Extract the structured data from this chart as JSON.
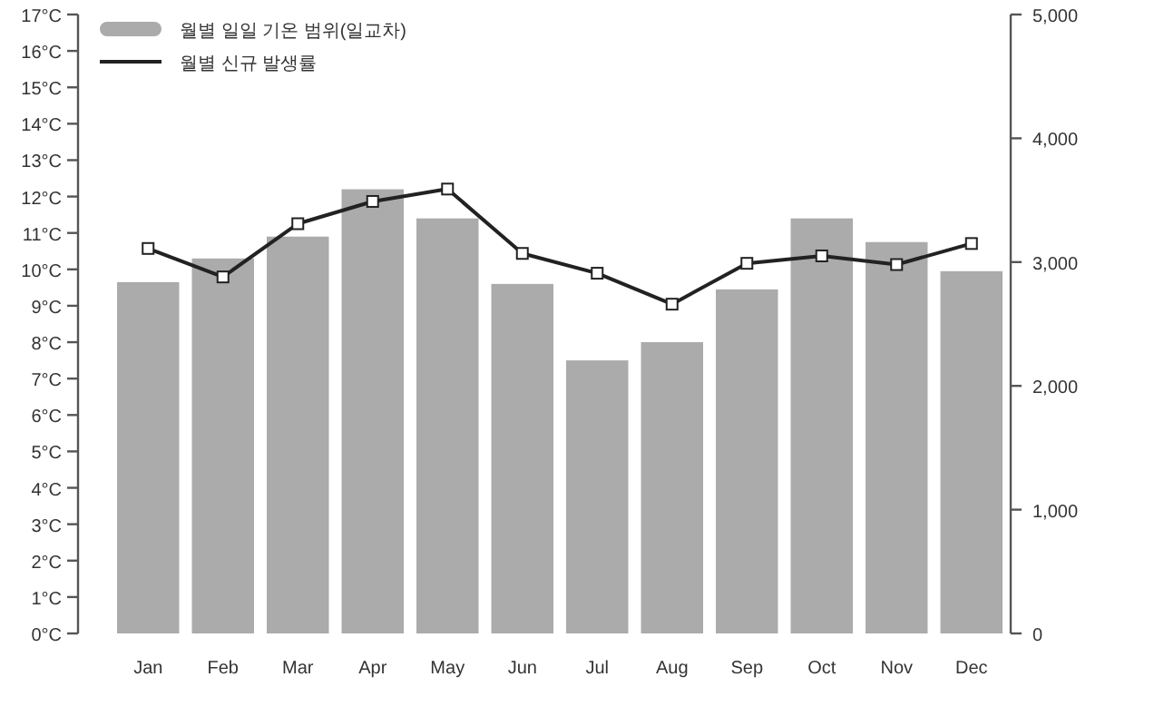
{
  "chart_data": {
    "type": "bar",
    "categories": [
      "Jan",
      "Feb",
      "Mar",
      "Apr",
      "May",
      "Jun",
      "Jul",
      "Aug",
      "Sep",
      "Oct",
      "Nov",
      "Dec"
    ],
    "series": [
      {
        "name": "월별 일일 기온 범위(일교차)",
        "color": "#ababab",
        "values": [
          9.65,
          10.3,
          10.9,
          12.2,
          11.4,
          9.6,
          7.5,
          8.0,
          9.45,
          11.4,
          10.75,
          9.95
        ]
      },
      {
        "name": "월별 신규 발생률",
        "type": "line",
        "axis": "y2",
        "color": "#222222",
        "marker": "square",
        "values": [
          3110,
          2880,
          3310,
          3490,
          3590,
          3070,
          2910,
          2660,
          2990,
          3050,
          2980,
          3150
        ]
      }
    ],
    "ylim": [
      0,
      17
    ],
    "yticks": [
      {
        "value": 0,
        "label": "0°C"
      },
      {
        "value": 1,
        "label": "1°C"
      },
      {
        "value": 2,
        "label": "2°C"
      },
      {
        "value": 3,
        "label": "3°C"
      },
      {
        "value": 4,
        "label": "4°C"
      },
      {
        "value": 5,
        "label": "5°C"
      },
      {
        "value": 6,
        "label": "6°C"
      },
      {
        "value": 7,
        "label": "7°C"
      },
      {
        "value": 8,
        "label": "8°C"
      },
      {
        "value": 9,
        "label": "9°C"
      },
      {
        "value": 10,
        "label": "10°C"
      },
      {
        "value": 11,
        "label": "11°C"
      },
      {
        "value": 12,
        "label": "12°C"
      },
      {
        "value": 13,
        "label": "13°C"
      },
      {
        "value": 14,
        "label": "14°C"
      },
      {
        "value": 15,
        "label": "15°C"
      },
      {
        "value": 16,
        "label": "16°C"
      },
      {
        "value": 17,
        "label": "17°C"
      }
    ],
    "y2lim": [
      0,
      5000
    ],
    "y2ticks": [
      0,
      {
        "value": 1000,
        "label": "1,000"
      },
      {
        "value": 2000,
        "label": "2,000"
      },
      {
        "value": 3000,
        "label": "3,000"
      },
      {
        "value": 4000,
        "label": "4,000"
      },
      {
        "value": 5000,
        "label": "5,000"
      }
    ],
    "legend": "top left",
    "grid": false
  }
}
